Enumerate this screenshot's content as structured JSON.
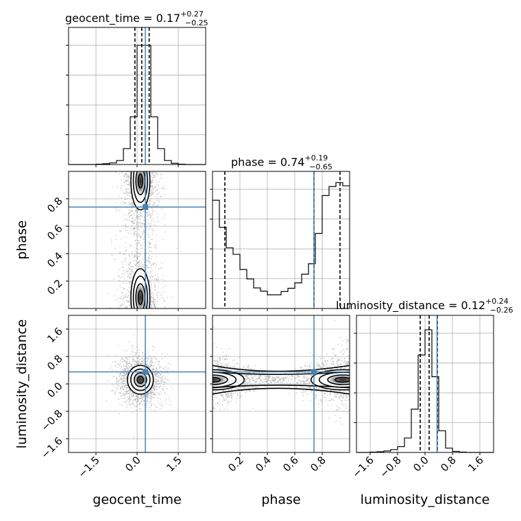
{
  "chart_data": {
    "type": "corner",
    "parameters": [
      "geocent_time",
      "phase",
      "luminosity_distance"
    ],
    "truths": {
      "geocent_time": 0.3,
      "phase": 0.74,
      "luminosity_distance": 0.35
    },
    "truth_color": "#4682b4",
    "grid": true,
    "titles": [
      {
        "param": "geocent_time",
        "text": "geocent_time = 0.17",
        "plus": "+0.27",
        "minus": "−0.25"
      },
      {
        "param": "phase",
        "text": "phase = 0.74",
        "plus": "+0.19",
        "minus": "−0.65"
      },
      {
        "param": "luminosity_distance",
        "text": "luminosity_distance = 0.12",
        "plus": "+0.24",
        "minus": "−0.26"
      }
    ],
    "axes": {
      "geocent_time": {
        "range": [
          -2.5,
          2.5
        ],
        "ticks": [
          -1.5,
          0.0,
          1.5
        ],
        "tick_labels": [
          "−1.5",
          "0.0",
          "1.5"
        ],
        "label": "geocent_time"
      },
      "phase": {
        "range": [
          0.0,
          1.0
        ],
        "ticks": [
          0.2,
          0.4,
          0.6,
          0.8
        ],
        "tick_labels": [
          "0.2",
          "0.4",
          "0.6",
          "0.8"
        ],
        "label": "phase"
      },
      "luminosity_distance": {
        "range": [
          -2.0,
          2.0
        ],
        "ticks": [
          -1.6,
          -0.8,
          0.0,
          0.8,
          1.6
        ],
        "tick_labels": [
          "−1.6",
          "−0.8",
          "0.0",
          "0.8",
          "1.6"
        ],
        "label": "luminosity_distance"
      }
    },
    "histograms": {
      "geocent_time": {
        "bin_edges": [
          -2.5,
          -2.25,
          -2.0,
          -1.75,
          -1.5,
          -1.25,
          -1.0,
          -0.75,
          -0.5,
          -0.25,
          0.0,
          0.25,
          0.5,
          0.75,
          1.0,
          1.25,
          1.5,
          1.75,
          2.0,
          2.25,
          2.5
        ],
        "counts": [
          0,
          0,
          0,
          0,
          1,
          2,
          4,
          10,
          40,
          120,
          300,
          300,
          120,
          40,
          10,
          3,
          1,
          0,
          0,
          0
        ],
        "ymax": 345,
        "quantiles": [
          -0.08,
          0.17,
          0.44
        ]
      },
      "phase": {
        "bin_edges": [
          0.0,
          0.05,
          0.1,
          0.15,
          0.2,
          0.25,
          0.3,
          0.35,
          0.4,
          0.45,
          0.5,
          0.55,
          0.6,
          0.65,
          0.7,
          0.75,
          0.8,
          0.85,
          0.9,
          0.95,
          1.0
        ],
        "counts": [
          300,
          225,
          168,
          150,
          108,
          82,
          57,
          48,
          38,
          38,
          47,
          56,
          71,
          95,
          124,
          208,
          313,
          338,
          349,
          340
        ],
        "ymax": 380,
        "quantiles": [
          0.09,
          0.74,
          0.93
        ]
      },
      "luminosity_distance": {
        "bin_edges": [
          -2.0,
          -1.8,
          -1.6,
          -1.4,
          -1.2,
          -1.0,
          -0.8,
          -0.6,
          -0.4,
          -0.2,
          0.0,
          0.2,
          0.4,
          0.6,
          0.8,
          1.0,
          1.2,
          1.4,
          1.6,
          1.8,
          2.0
        ],
        "counts": [
          0,
          0,
          1,
          2,
          4,
          8,
          16,
          40,
          120,
          270,
          340,
          210,
          60,
          12,
          3,
          1,
          0,
          0,
          0,
          0
        ],
        "ymax": 380,
        "quantiles": [
          -0.14,
          0.12,
          0.36
        ]
      }
    }
  }
}
